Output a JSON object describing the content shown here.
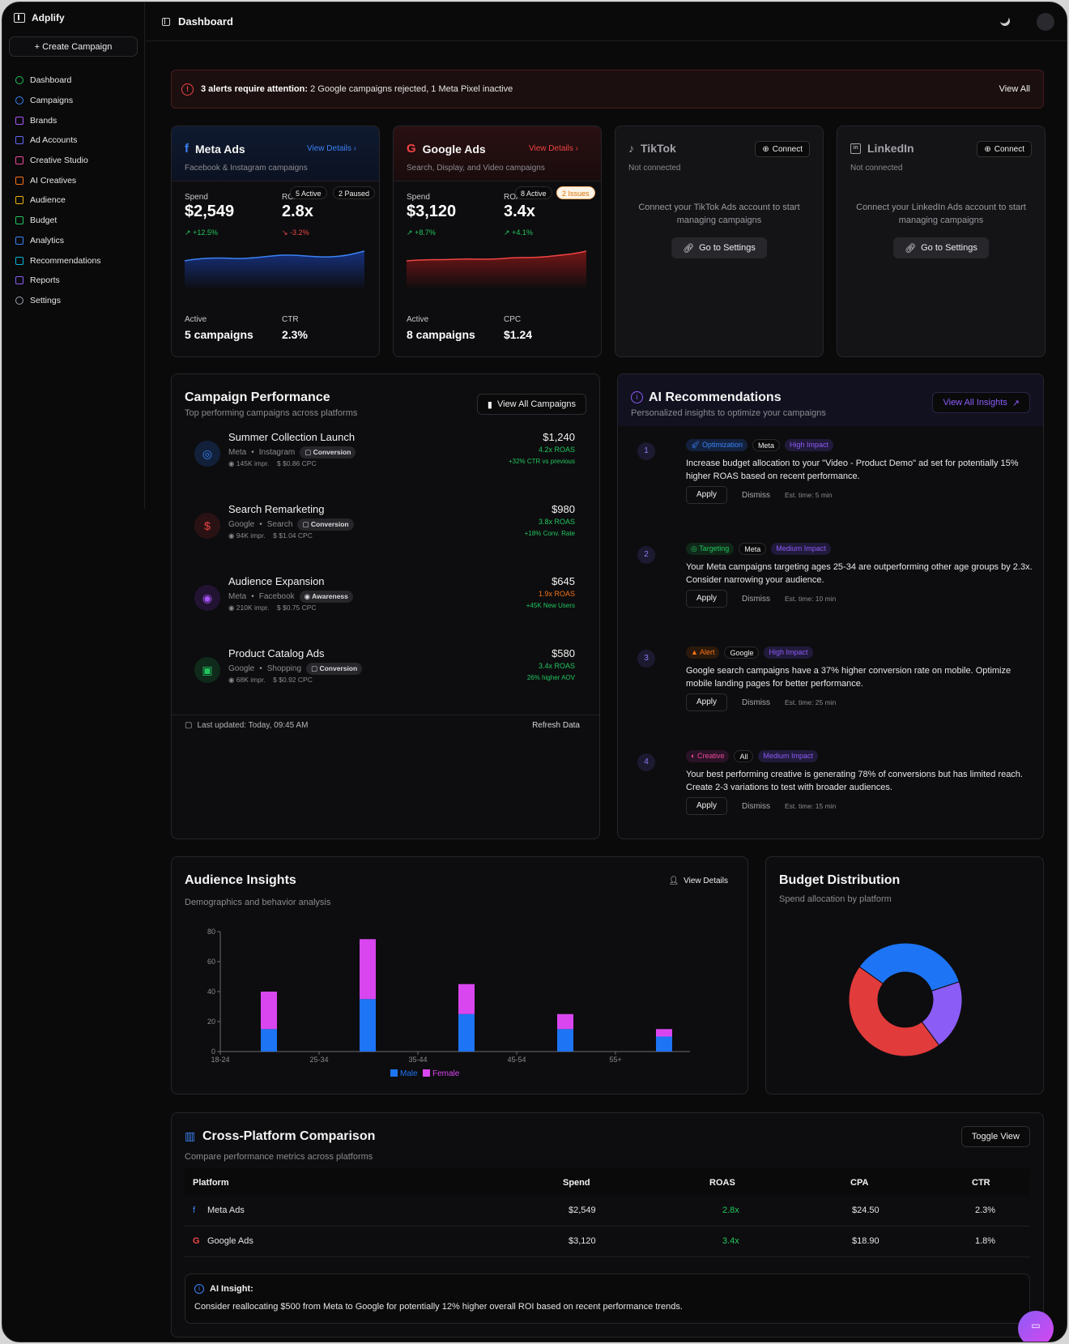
{
  "app": {
    "name": "Adplify",
    "create_campaign": "+ Create Campaign"
  },
  "sidebar": {
    "items": [
      {
        "label": "Dashboard",
        "icon": "dashboard-icon",
        "color": "#22c55e"
      },
      {
        "label": "Campaigns",
        "icon": "target-icon",
        "color": "#3b82f6"
      },
      {
        "label": "Brands",
        "icon": "book-icon",
        "color": "#a855f7"
      },
      {
        "label": "Ad Accounts",
        "icon": "link-icon",
        "color": "#6366f1"
      },
      {
        "label": "Creative Studio",
        "icon": "palette-icon",
        "color": "#ec4899"
      },
      {
        "label": "AI Creatives",
        "icon": "layers-icon",
        "color": "#f97316"
      },
      {
        "label": "Audience",
        "icon": "users-icon",
        "color": "#eab308"
      },
      {
        "label": "Budget",
        "icon": "file-icon",
        "color": "#22c55e"
      },
      {
        "label": "Analytics",
        "icon": "chart-icon",
        "color": "#3b82f6"
      },
      {
        "label": "Recommendations",
        "icon": "book-open-icon",
        "color": "#06b6d4"
      },
      {
        "label": "Reports",
        "icon": "document-icon",
        "color": "#8b5cf6"
      },
      {
        "label": "Settings",
        "icon": "gear-icon",
        "color": "#9ca3af"
      }
    ]
  },
  "header": {
    "title": "Dashboard"
  },
  "alert": {
    "bold": "3 alerts require attention:",
    "text": " 2 Google campaigns rejected, 1 Meta Pixel inactive",
    "view_all": "View All"
  },
  "platforms": {
    "meta": {
      "name": "Meta Ads",
      "sub": "Facebook & Instagram campaigns",
      "link": "View Details",
      "spend_label": "Spend",
      "spend": "$2,549",
      "spend_change": "+12.5%",
      "roas_label": "ROAS",
      "roas": "2.8x",
      "roas_change": "-3.2%",
      "pill1": "5 Active",
      "pill2": "2 Paused",
      "active_label": "Active",
      "active": "5 campaigns",
      "metric_label": "CTR",
      "metric": "2.3%",
      "color": "#3b82f6"
    },
    "google": {
      "name": "Google Ads",
      "sub": "Search, Display, and Video campaigns",
      "link": "View Details",
      "spend_label": "Spend",
      "spend": "$3,120",
      "spend_change": "+8.7%",
      "roas_label": "ROAS",
      "roas": "3.4x",
      "roas_change": "+4.1%",
      "pill1": "8 Active",
      "pill2": "2 Issues",
      "active_label": "Active",
      "active": "8 campaigns",
      "metric_label": "CPC",
      "metric": "$1.24",
      "color": "#ef4444"
    },
    "tiktok": {
      "name": "TikTok",
      "sub": "Not connected",
      "connect": "Connect",
      "msg": "Connect your TikTok Ads account to start managing campaigns",
      "goto": "Go to Settings"
    },
    "linkedin": {
      "name": "LinkedIn",
      "sub": "Not connected",
      "connect": "Connect",
      "msg": "Connect your LinkedIn Ads account to start managing campaigns",
      "goto": "Go to Settings"
    }
  },
  "campaign_performance": {
    "title": "Campaign Performance",
    "sub": "Top performing campaigns across platforms",
    "view_all": "View All Campaigns",
    "items": [
      {
        "name": "Summer Collection Launch",
        "platform": "Meta",
        "channel": "Instagram",
        "tag": "Conversion",
        "impr": "145K impr.",
        "cpc": "$0.86 CPC",
        "spend": "$1,240",
        "roas": "4.2x ROAS",
        "delta": "+32% CTR vs previous",
        "icon": "instagram-icon",
        "roas_color": "#22c55e"
      },
      {
        "name": "Search Remarketing",
        "platform": "Google",
        "channel": "Search",
        "tag": "Conversion",
        "impr": "94K impr.",
        "cpc": "$1.04 CPC",
        "spend": "$980",
        "roas": "3.8x ROAS",
        "delta": "+18% Conv. Rate",
        "icon": "dollar-icon",
        "roas_color": "#22c55e"
      },
      {
        "name": "Audience Expansion",
        "platform": "Meta",
        "channel": "Facebook",
        "tag": "Awareness",
        "impr": "210K impr.",
        "cpc": "$0.75 CPC",
        "spend": "$645",
        "roas": "1.9x ROAS",
        "delta": "+45K New Users",
        "icon": "target-icon",
        "roas_color": "#f97316"
      },
      {
        "name": "Product Catalog Ads",
        "platform": "Google",
        "channel": "Shopping",
        "tag": "Conversion",
        "impr": "68K impr.",
        "cpc": "$0.92 CPC",
        "spend": "$580",
        "roas": "3.4x ROAS",
        "delta": "26% higher AOV",
        "icon": "shopping-bag-icon",
        "roas_color": "#22c55e"
      }
    ],
    "last_updated": "Last updated: Today, 09:45 AM",
    "refresh": "Refresh Data"
  },
  "recommendations": {
    "title": "AI Recommendations",
    "sub": "Personalized insights to optimize your campaigns",
    "view_all": "View All Insights",
    "items": [
      {
        "num": "1",
        "type": "Optimization",
        "platform": "Meta",
        "impact": "High Impact",
        "text": "Increase budget allocation to your \"Video - Product Demo\" ad set for potentially 15% higher ROAS based on recent performance.",
        "apply": "Apply",
        "dismiss": "Dismiss",
        "est": "Est. time: 5 min"
      },
      {
        "num": "2",
        "type": "Targeting",
        "platform": "Meta",
        "impact": "Medium Impact",
        "text": "Your Meta campaigns targeting ages 25-34 are outperforming other age groups by 2.3x. Consider narrowing your audience.",
        "apply": "Apply",
        "dismiss": "Dismiss",
        "est": "Est. time: 10 min"
      },
      {
        "num": "3",
        "type": "Alert",
        "platform": "Google",
        "impact": "High Impact",
        "text": "Google search campaigns have a 37% higher conversion rate on mobile. Optimize mobile landing pages for better performance.",
        "apply": "Apply",
        "dismiss": "Dismiss",
        "est": "Est. time: 25 min"
      },
      {
        "num": "4",
        "type": "Creative",
        "platform": "All",
        "impact": "Medium Impact",
        "text": "Your best performing creative is generating 78% of conversions but has limited reach. Create 2-3 variations to test with broader audiences.",
        "apply": "Apply",
        "dismiss": "Dismiss",
        "est": "Est. time: 15 min"
      }
    ]
  },
  "audience": {
    "title": "Audience Insights",
    "sub": "Demographics and behavior analysis",
    "view_details": "View Details"
  },
  "budget": {
    "title": "Budget Distribution",
    "sub": "Spend allocation by platform"
  },
  "chart_data": [
    {
      "type": "bar",
      "stacked": true,
      "categories": [
        "18-24",
        "25-34",
        "35-44",
        "45-54",
        "55+"
      ],
      "series": [
        {
          "name": "Male",
          "values": [
            15,
            35,
            25,
            15,
            10
          ],
          "color": "#1d74f5"
        },
        {
          "name": "Female",
          "values": [
            25,
            40,
            20,
            10,
            5
          ],
          "color": "#d946ef"
        }
      ],
      "ylim": [
        0,
        80
      ],
      "yticks": [
        0,
        20,
        40,
        60,
        80
      ],
      "legend": "bottom"
    },
    {
      "type": "pie",
      "donut": true,
      "slices": [
        {
          "value": 35,
          "color": "#1d74f5"
        },
        {
          "value": 20,
          "color": "#8b5cf6"
        },
        {
          "value": 45,
          "color": "#e23b3b"
        }
      ]
    }
  ],
  "comparison": {
    "title": "Cross-Platform Comparison",
    "sub": "Compare performance metrics across platforms",
    "toggle": "Toggle View",
    "columns": [
      "Platform",
      "Spend",
      "ROAS",
      "CPA",
      "CTR"
    ],
    "rows": [
      {
        "platform": "Meta Ads",
        "spend": "$2,549",
        "roas": "2.8x",
        "cpa": "$24.50",
        "ctr": "2.3%"
      },
      {
        "platform": "Google Ads",
        "spend": "$3,120",
        "roas": "3.4x",
        "cpa": "$18.90",
        "ctr": "1.8%"
      }
    ],
    "insight_title": "AI Insight:",
    "insight_text": "Consider reallocating $500 from Meta to Google for potentially 12% higher overall ROI based on recent performance trends."
  }
}
